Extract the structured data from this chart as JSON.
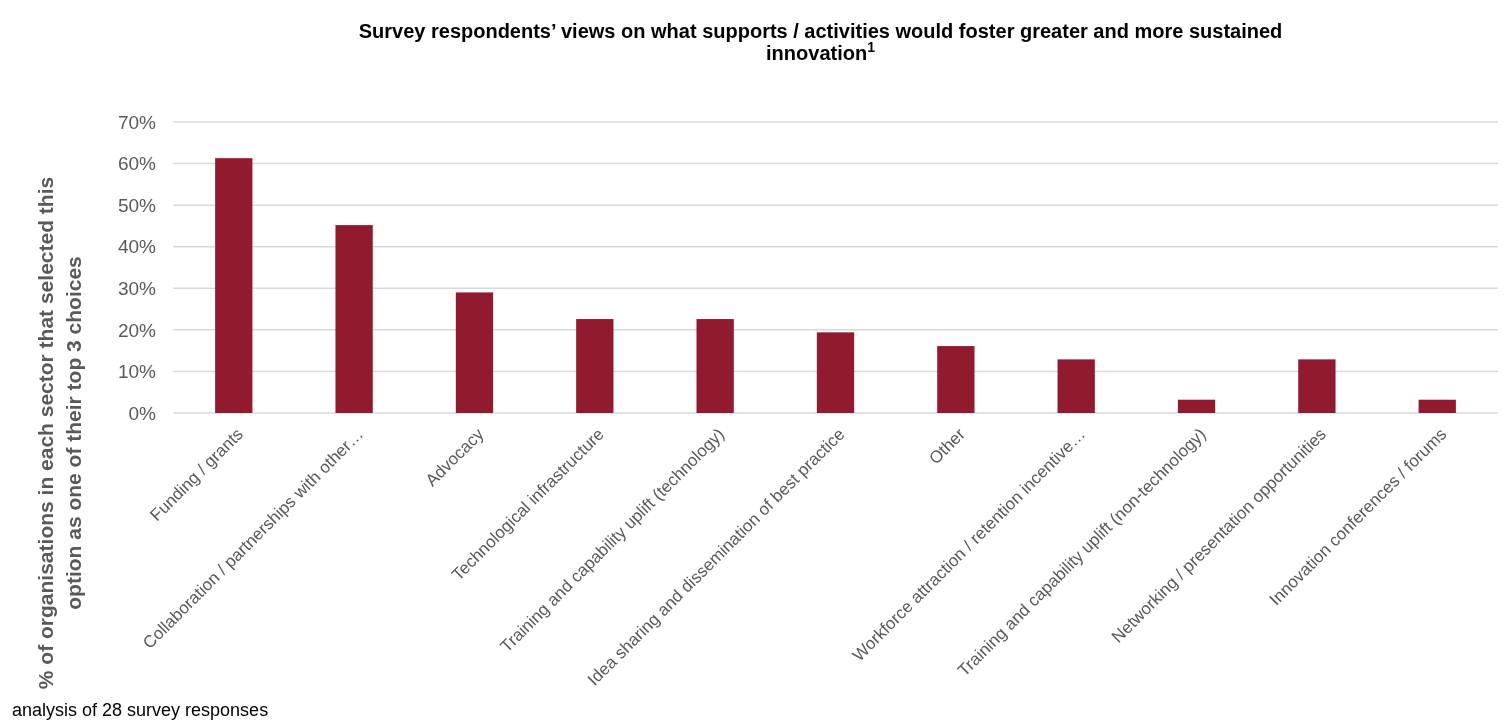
{
  "chart_data": {
    "type": "bar",
    "title": "Survey respondents’ views on what supports / activities would foster greater and more sustained innovation$^{1}$",
    "ylabel": "% of organisations in each sector that selected this option as one of their top 3 choices",
    "categories": [
      "Funding / grants",
      "Collaboration / partnerships with other…",
      "Advocacy",
      "Technological infrastructure",
      "Training and capability uplift (technology)",
      "Idea sharing and dissemination of best practice",
      "Other",
      "Workforce attraction / retention incentive…",
      "Training and capability uplift (non-technology)",
      "Networking / presentation opportunities",
      "Innovation conferences / forums"
    ],
    "values": [
      61.3,
      45.2,
      29,
      22.6,
      22.6,
      19.4,
      16.1,
      12.9,
      3.2,
      12.9,
      3.2
    ],
    "color": "#921a2f",
    "ylim": [
      0,
      70
    ],
    "yticks": [
      {
        "value": 0,
        "label": "0%"
      },
      {
        "value": 10,
        "label": "10%"
      },
      {
        "value": 20,
        "label": "20%"
      },
      {
        "value": 30,
        "label": "30%"
      },
      {
        "value": 40,
        "label": "40%"
      },
      {
        "value": 50,
        "label": "50%"
      },
      {
        "value": 60,
        "label": "60%"
      },
      {
        "value": 70,
        "label": "70%"
      }
    ],
    "grid": "y",
    "annotations": [
      "analysis of 28 survey responses"
    ]
  }
}
